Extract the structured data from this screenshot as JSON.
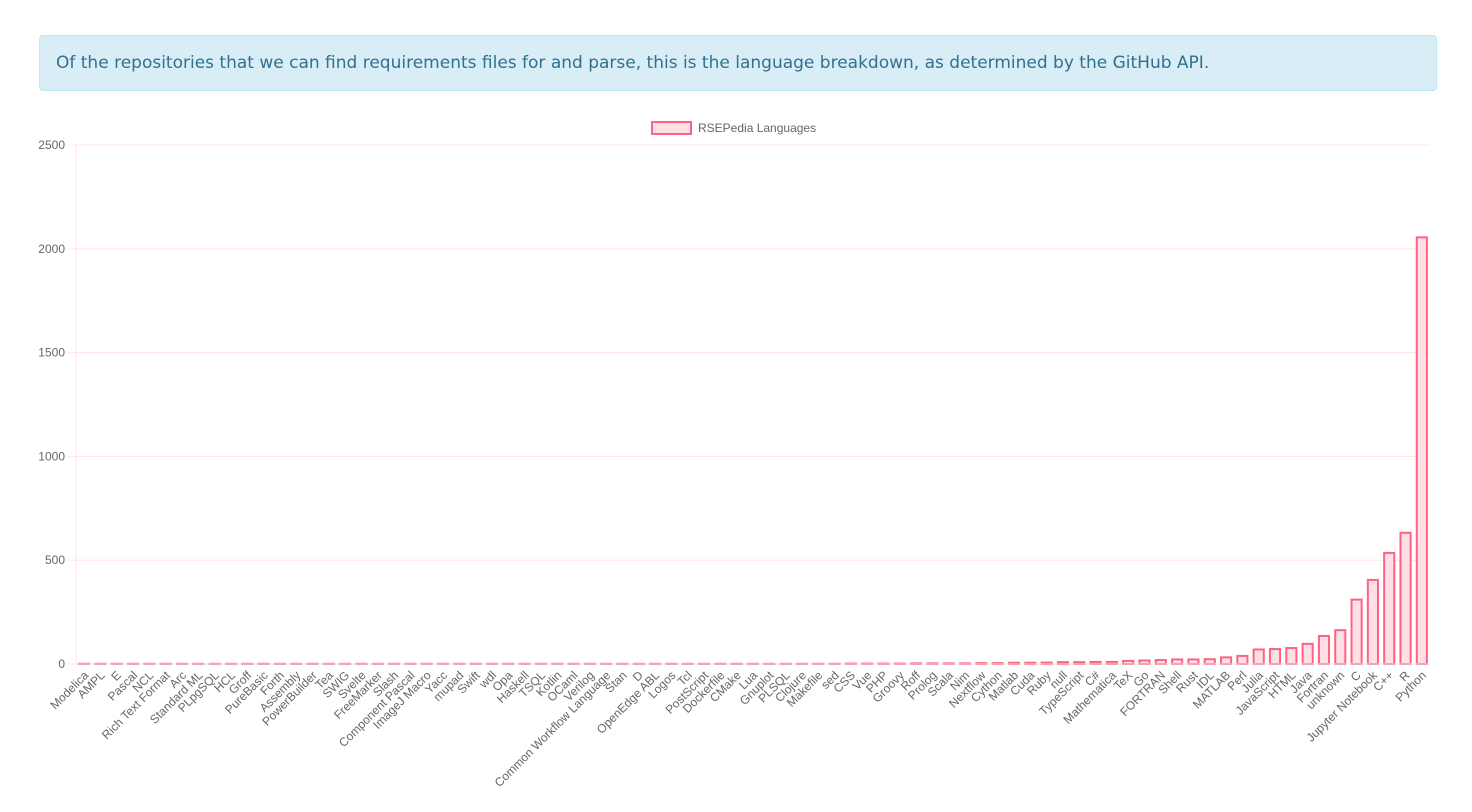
{
  "banner": {
    "text": "Of the repositories that we can find requirements files for and parse, this is the language breakdown, as determined by the GitHub API."
  },
  "chart_data": {
    "type": "bar",
    "legend": "RSEPedia Languages",
    "legend_position": "top",
    "ylim": [
      0,
      2500
    ],
    "yticks": [
      0,
      500,
      1000,
      1500,
      2000,
      2500
    ],
    "grid": true,
    "colors": {
      "bar_fill": "#ffe0e6",
      "bar_stroke": "#ff6384",
      "grid": "#ffe3e8",
      "tick_text": "#666666"
    },
    "categories": [
      "Modelica",
      "AMPL",
      "E",
      "Pascal",
      "NCL",
      "Rich Text Format",
      "Arc",
      "Standard ML",
      "PLpgSQL",
      "HCL",
      "Groff",
      "PureBasic",
      "Forth",
      "Assembly",
      "PowerBuilder",
      "Tea",
      "SWIG",
      "Svelte",
      "FreeMarker",
      "Slash",
      "Component Pascal",
      "ImageJ Macro",
      "Yacc",
      "mupad",
      "Swift",
      "wdl",
      "Opa",
      "Haskell",
      "TSQL",
      "Kotlin",
      "OCaml",
      "Verilog",
      "Common Workflow Language",
      "Stan",
      "D",
      "OpenEdge ABL",
      "Logos",
      "Tcl",
      "PostScript",
      "Dockerfile",
      "CMake",
      "Lua",
      "Gnuplot",
      "PLSQL",
      "Clojure",
      "Makefile",
      "sed",
      "CSS",
      "Vue",
      "PHP",
      "Groovy",
      "Roff",
      "Prolog",
      "Scala",
      "Nim",
      "Nextflow",
      "Cython",
      "Matlab",
      "Cuda",
      "Ruby",
      "null",
      "TypeScript",
      "C#",
      "Mathematica",
      "TeX",
      "Go",
      "FORTRAN",
      "Shell",
      "Rust",
      "IDL",
      "MATLAB",
      "Perl",
      "Julia",
      "JavaScript",
      "HTML",
      "Java",
      "Fortran",
      "unknown",
      "C",
      "Jupyter Notebook",
      "C++",
      "R",
      "Python"
    ],
    "values": [
      1,
      1,
      1,
      1,
      1,
      1,
      1,
      1,
      1,
      1,
      1,
      1,
      1,
      1,
      1,
      1,
      1,
      1,
      1,
      1,
      1,
      1,
      1,
      1,
      1,
      1,
      1,
      1,
      1,
      1,
      1,
      1,
      1,
      1,
      1,
      1,
      1,
      1,
      1,
      1,
      1,
      1,
      1,
      1,
      1,
      1,
      1,
      2,
      2,
      2,
      2,
      3,
      3,
      3,
      3,
      4,
      4,
      6,
      6,
      7,
      9,
      9,
      10,
      10,
      15,
      17,
      19,
      22,
      22,
      23,
      32,
      39,
      70,
      72,
      77,
      97,
      135,
      163,
      310,
      405,
      535,
      632,
      2055
    ]
  }
}
